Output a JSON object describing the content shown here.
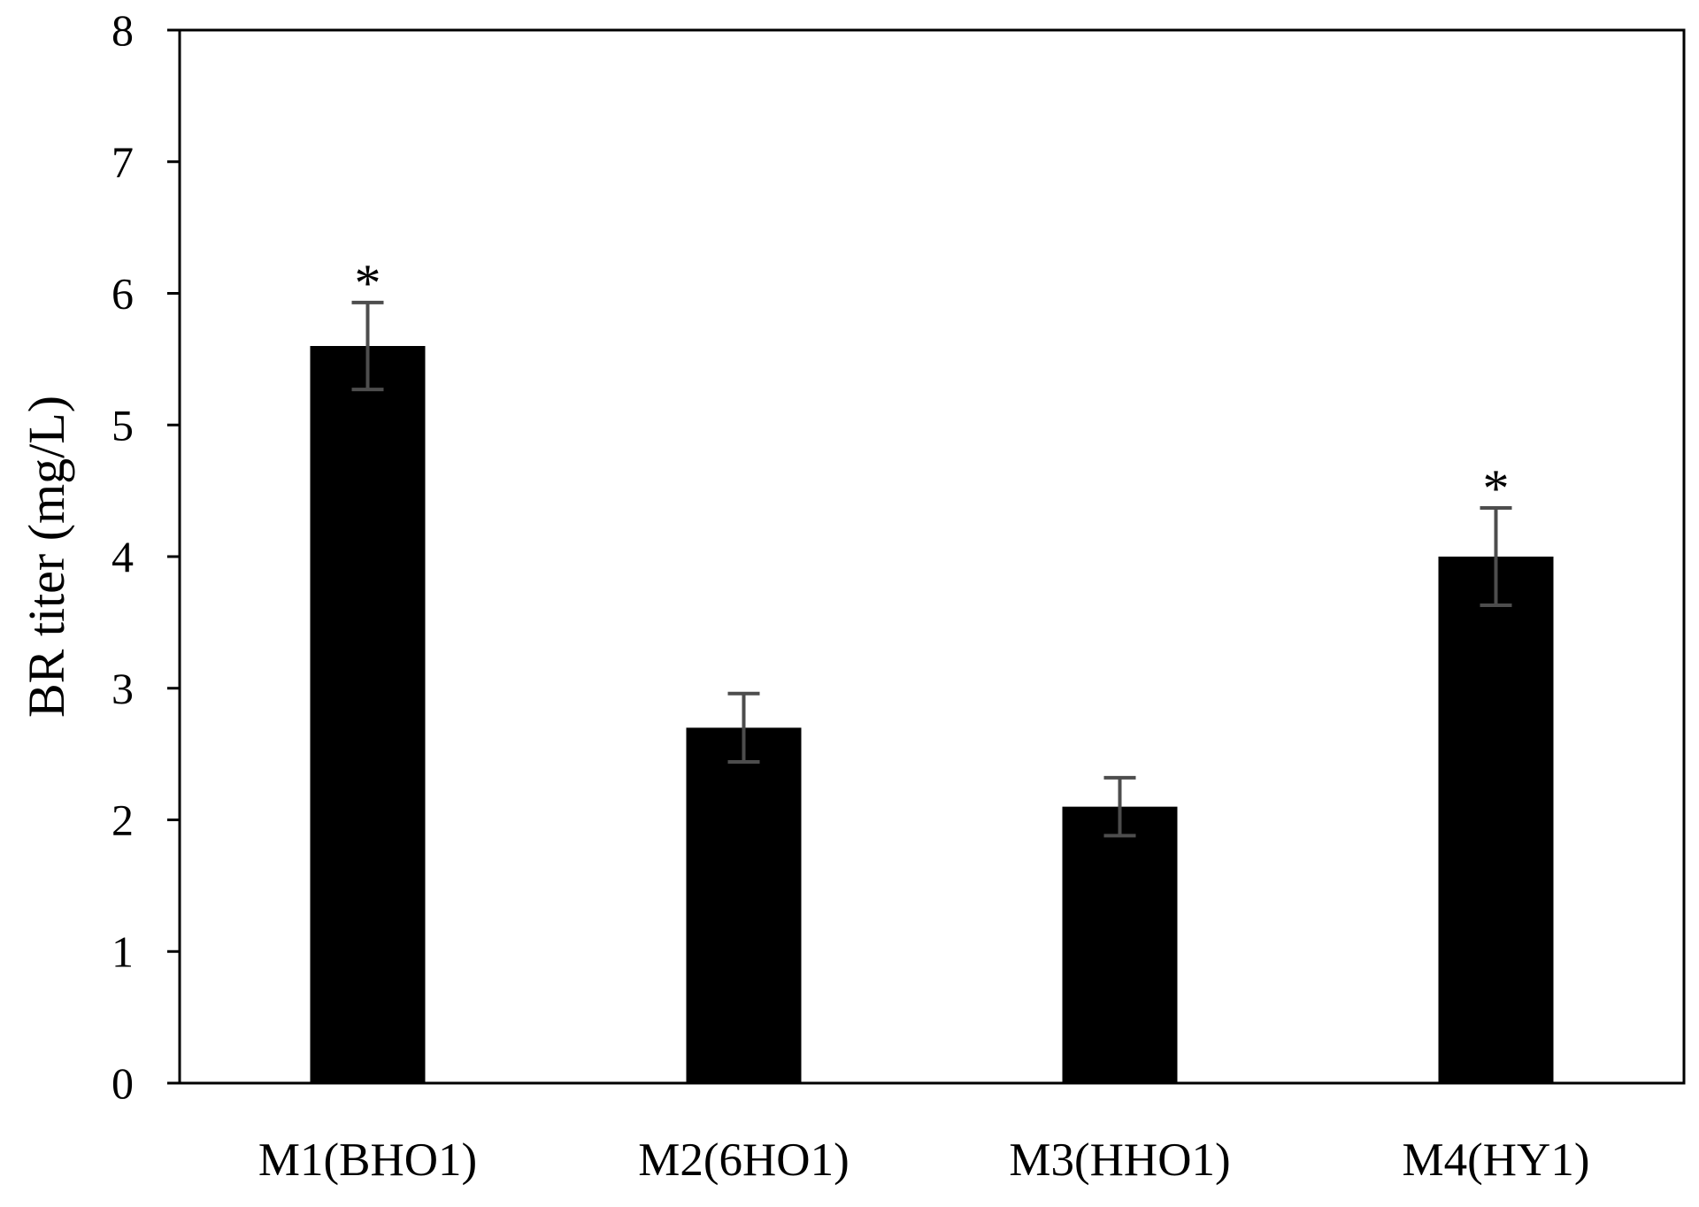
{
  "chart_data": {
    "type": "bar",
    "title": "",
    "xlabel": "",
    "ylabel": "BR titer (mg/L)",
    "categories": [
      "M1(BHO1)",
      "M2(6HO1)",
      "M3(HHO1)",
      "M4(HY1)"
    ],
    "values": [
      5.6,
      2.7,
      2.1,
      4.0
    ],
    "error": [
      0.33,
      0.26,
      0.22,
      0.37
    ],
    "significance": [
      "*",
      "",
      "",
      "*"
    ],
    "ylim": [
      0,
      8
    ],
    "yticks": [
      0,
      1,
      2,
      3,
      4,
      5,
      6,
      7,
      8
    ],
    "ytick_labels": [
      "0",
      "1",
      "2",
      "3",
      "4",
      "5",
      "6",
      "7",
      "8"
    ],
    "grid": false,
    "legend": "none",
    "colors": {
      "bar": "#000000",
      "error_bar": "#4d4d4d",
      "axis": "#000000",
      "background": "#ffffff"
    }
  }
}
